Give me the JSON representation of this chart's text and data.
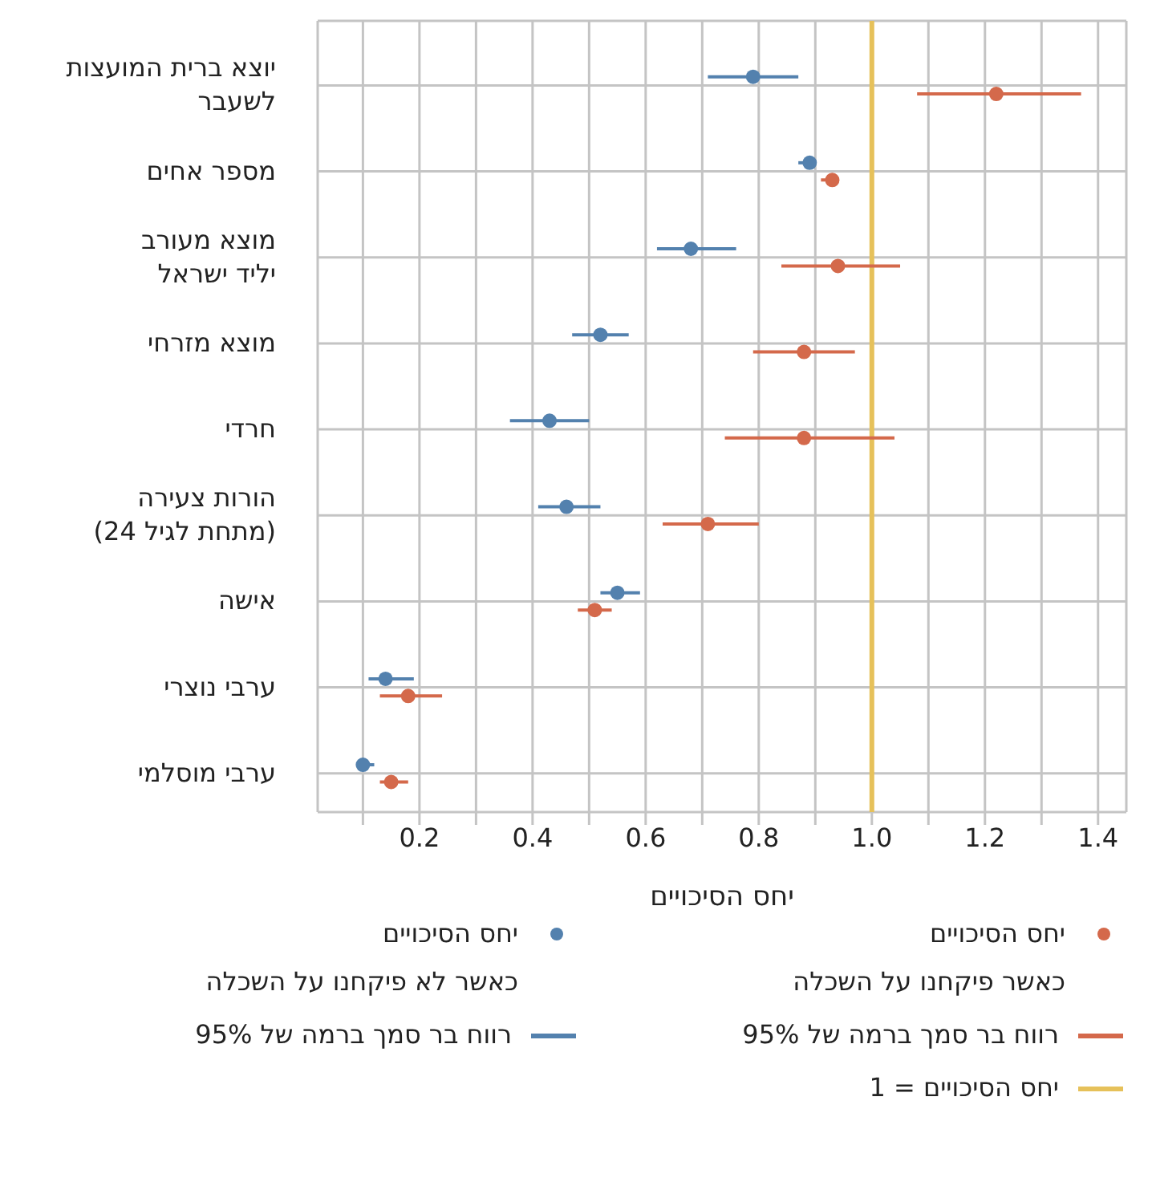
{
  "chart_data": {
    "type": "scatter",
    "orientation": "horizontal",
    "xlabel": "יחס הסיכויים",
    "categories": [
      "יוצא ברית המועצות\nלשעבר",
      "מספר אחים",
      "מוצא מעורב\nיליד ישראל",
      "מוצא מזרחי",
      "חרדי",
      "הורות צעירה\n(מתחת לגיל 24)",
      "אישה",
      "ערבי נוצרי",
      "ערבי מוסלמי"
    ],
    "series": [
      {
        "name": "יחס הסיכויים\nכאשר פיקחנו על השכלה",
        "color": "#d4694b",
        "values": [
          1.22,
          0.93,
          0.94,
          0.88,
          0.88,
          0.71,
          0.51,
          0.18,
          0.15
        ],
        "errors": [
          [
            1.08,
            1.37
          ],
          [
            0.91,
            0.94
          ],
          [
            0.84,
            1.05
          ],
          [
            0.79,
            0.97
          ],
          [
            0.74,
            1.04
          ],
          [
            0.63,
            0.8
          ],
          [
            0.48,
            0.54
          ],
          [
            0.13,
            0.24
          ],
          [
            0.13,
            0.18
          ]
        ]
      },
      {
        "name": "יחס הסיכויים\nכאשר לא פיקחנו על השכלה",
        "color": "#5381ae",
        "values": [
          0.79,
          0.89,
          0.68,
          0.52,
          0.43,
          0.46,
          0.55,
          0.14,
          0.1
        ],
        "errors": [
          [
            0.71,
            0.87
          ],
          [
            0.87,
            0.9
          ],
          [
            0.62,
            0.76
          ],
          [
            0.47,
            0.57
          ],
          [
            0.36,
            0.5
          ],
          [
            0.41,
            0.52
          ],
          [
            0.52,
            0.59
          ],
          [
            0.11,
            0.19
          ],
          [
            0.09,
            0.12
          ]
        ]
      }
    ],
    "annotations": [
      "רווח בר סמך ברמה של 95%",
      "רווח בר סמך ברמה של 95%"
    ],
    "ref_lines": [
      {
        "axis": "x",
        "value": 1,
        "label": "יחס הסיכויים = 1",
        "color": "#e6c15a"
      }
    ],
    "xlim": [
      0.02,
      1.45
    ],
    "xticks": [
      {
        "value": 0.1,
        "label": null
      },
      0.2,
      {
        "value": 0.3,
        "label": null
      },
      0.4,
      {
        "value": 0.5,
        "label": null
      },
      0.6,
      {
        "value": 0.7,
        "label": null
      },
      0.8,
      {
        "value": 0.9,
        "label": null
      },
      {
        "value": 1,
        "label": "1.0"
      },
      {
        "value": 1.1,
        "label": null
      },
      1.2,
      {
        "value": 1.3,
        "label": null
      },
      1.4
    ],
    "grid": true,
    "legend": "bottom",
    "marker": "circle"
  }
}
